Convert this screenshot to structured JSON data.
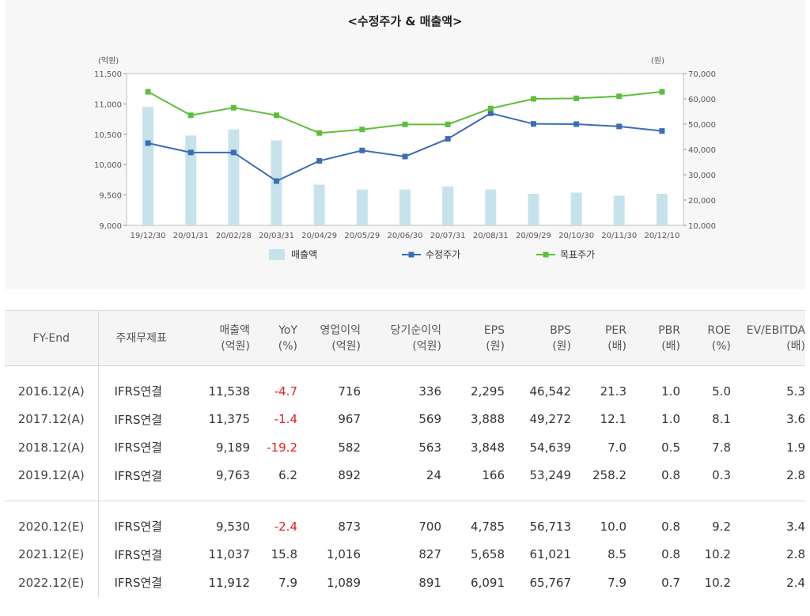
{
  "chart_data": {
    "type": "bar+line",
    "title": "<수정주가 & 매출액>",
    "left_axis_unit": "(억원)",
    "right_axis_unit": "(원)",
    "left_ylim": [
      9000,
      11500
    ],
    "left_ticks": [
      "11,500",
      "11,000",
      "10,500",
      "10,000",
      "9,500",
      "9,000"
    ],
    "right_ylim": [
      10000,
      70000
    ],
    "right_ticks": [
      "70,000",
      "60,000",
      "50,000",
      "40,000",
      "30,000",
      "20,000",
      "10,000"
    ],
    "categories": [
      "19/12/30",
      "20/01/31",
      "20/02/28",
      "20/03/31",
      "20/04/29",
      "20/05/29",
      "20/06/30",
      "20/07/31",
      "20/08/31",
      "20/09/29",
      "20/10/30",
      "20/11/30",
      "20/12/10"
    ],
    "series": [
      {
        "name": "매출액",
        "kind": "bar",
        "axis": "left",
        "color": "#c6e3ec",
        "values": [
          10950,
          10480,
          10580,
          10400,
          9670,
          9590,
          9590,
          9640,
          9590,
          9520,
          9540,
          9490,
          9520
        ]
      },
      {
        "name": "수정주가",
        "kind": "line",
        "axis": "right",
        "color": "#3a6db5",
        "values": [
          42500,
          38800,
          38800,
          27500,
          35500,
          39600,
          37200,
          44200,
          54300,
          50100,
          50000,
          49100,
          47300
        ]
      },
      {
        "name": "목표주가",
        "kind": "line",
        "axis": "right",
        "color": "#5cbf3a",
        "values": [
          62800,
          53500,
          56500,
          53500,
          46500,
          47900,
          49900,
          49900,
          56200,
          60000,
          60200,
          61000,
          62800
        ]
      }
    ],
    "grid": false,
    "legend_position": "bottom"
  },
  "table": {
    "headers": [
      {
        "label": "FY-End",
        "unit": ""
      },
      {
        "label": "주재무제표",
        "unit": ""
      },
      {
        "label": "매출액",
        "unit": "(억원)"
      },
      {
        "label": "YoY",
        "unit": "(%)"
      },
      {
        "label": "영업이익",
        "unit": "(억원)"
      },
      {
        "label": "당기순이익",
        "unit": "(억원)"
      },
      {
        "label": "EPS",
        "unit": "(원)"
      },
      {
        "label": "BPS",
        "unit": "(원)"
      },
      {
        "label": "PER",
        "unit": "(배)"
      },
      {
        "label": "PBR",
        "unit": "(배)"
      },
      {
        "label": "ROE",
        "unit": "(%)"
      },
      {
        "label": "EV/EBITDA",
        "unit": "(배)"
      }
    ],
    "actual_rows": [
      [
        "2016.12(A)",
        "IFRS연결",
        "11,538",
        "-4.7",
        "716",
        "336",
        "2,295",
        "46,542",
        "21.3",
        "1.0",
        "5.0",
        "5.3"
      ],
      [
        "2017.12(A)",
        "IFRS연결",
        "11,375",
        "-1.4",
        "967",
        "569",
        "3,888",
        "49,272",
        "12.1",
        "1.0",
        "8.1",
        "3.6"
      ],
      [
        "2018.12(A)",
        "IFRS연결",
        "9,189",
        "-19.2",
        "582",
        "563",
        "3,848",
        "54,639",
        "7.0",
        "0.5",
        "7.8",
        "1.9"
      ],
      [
        "2019.12(A)",
        "IFRS연결",
        "9,763",
        "6.2",
        "892",
        "24",
        "166",
        "53,249",
        "258.2",
        "0.8",
        "0.3",
        "2.8"
      ]
    ],
    "estimate_rows": [
      [
        "2020.12(E)",
        "IFRS연결",
        "9,530",
        "-2.4",
        "873",
        "700",
        "4,785",
        "56,713",
        "10.0",
        "0.8",
        "9.2",
        "3.4"
      ],
      [
        "2021.12(E)",
        "IFRS연결",
        "11,037",
        "15.8",
        "1,016",
        "827",
        "5,658",
        "61,021",
        "8.5",
        "0.8",
        "10.2",
        "2.8"
      ],
      [
        "2022.12(E)",
        "IFRS연결",
        "11,912",
        "7.9",
        "1,089",
        "891",
        "6,091",
        "65,767",
        "7.9",
        "0.7",
        "10.2",
        "2.4"
      ]
    ]
  }
}
